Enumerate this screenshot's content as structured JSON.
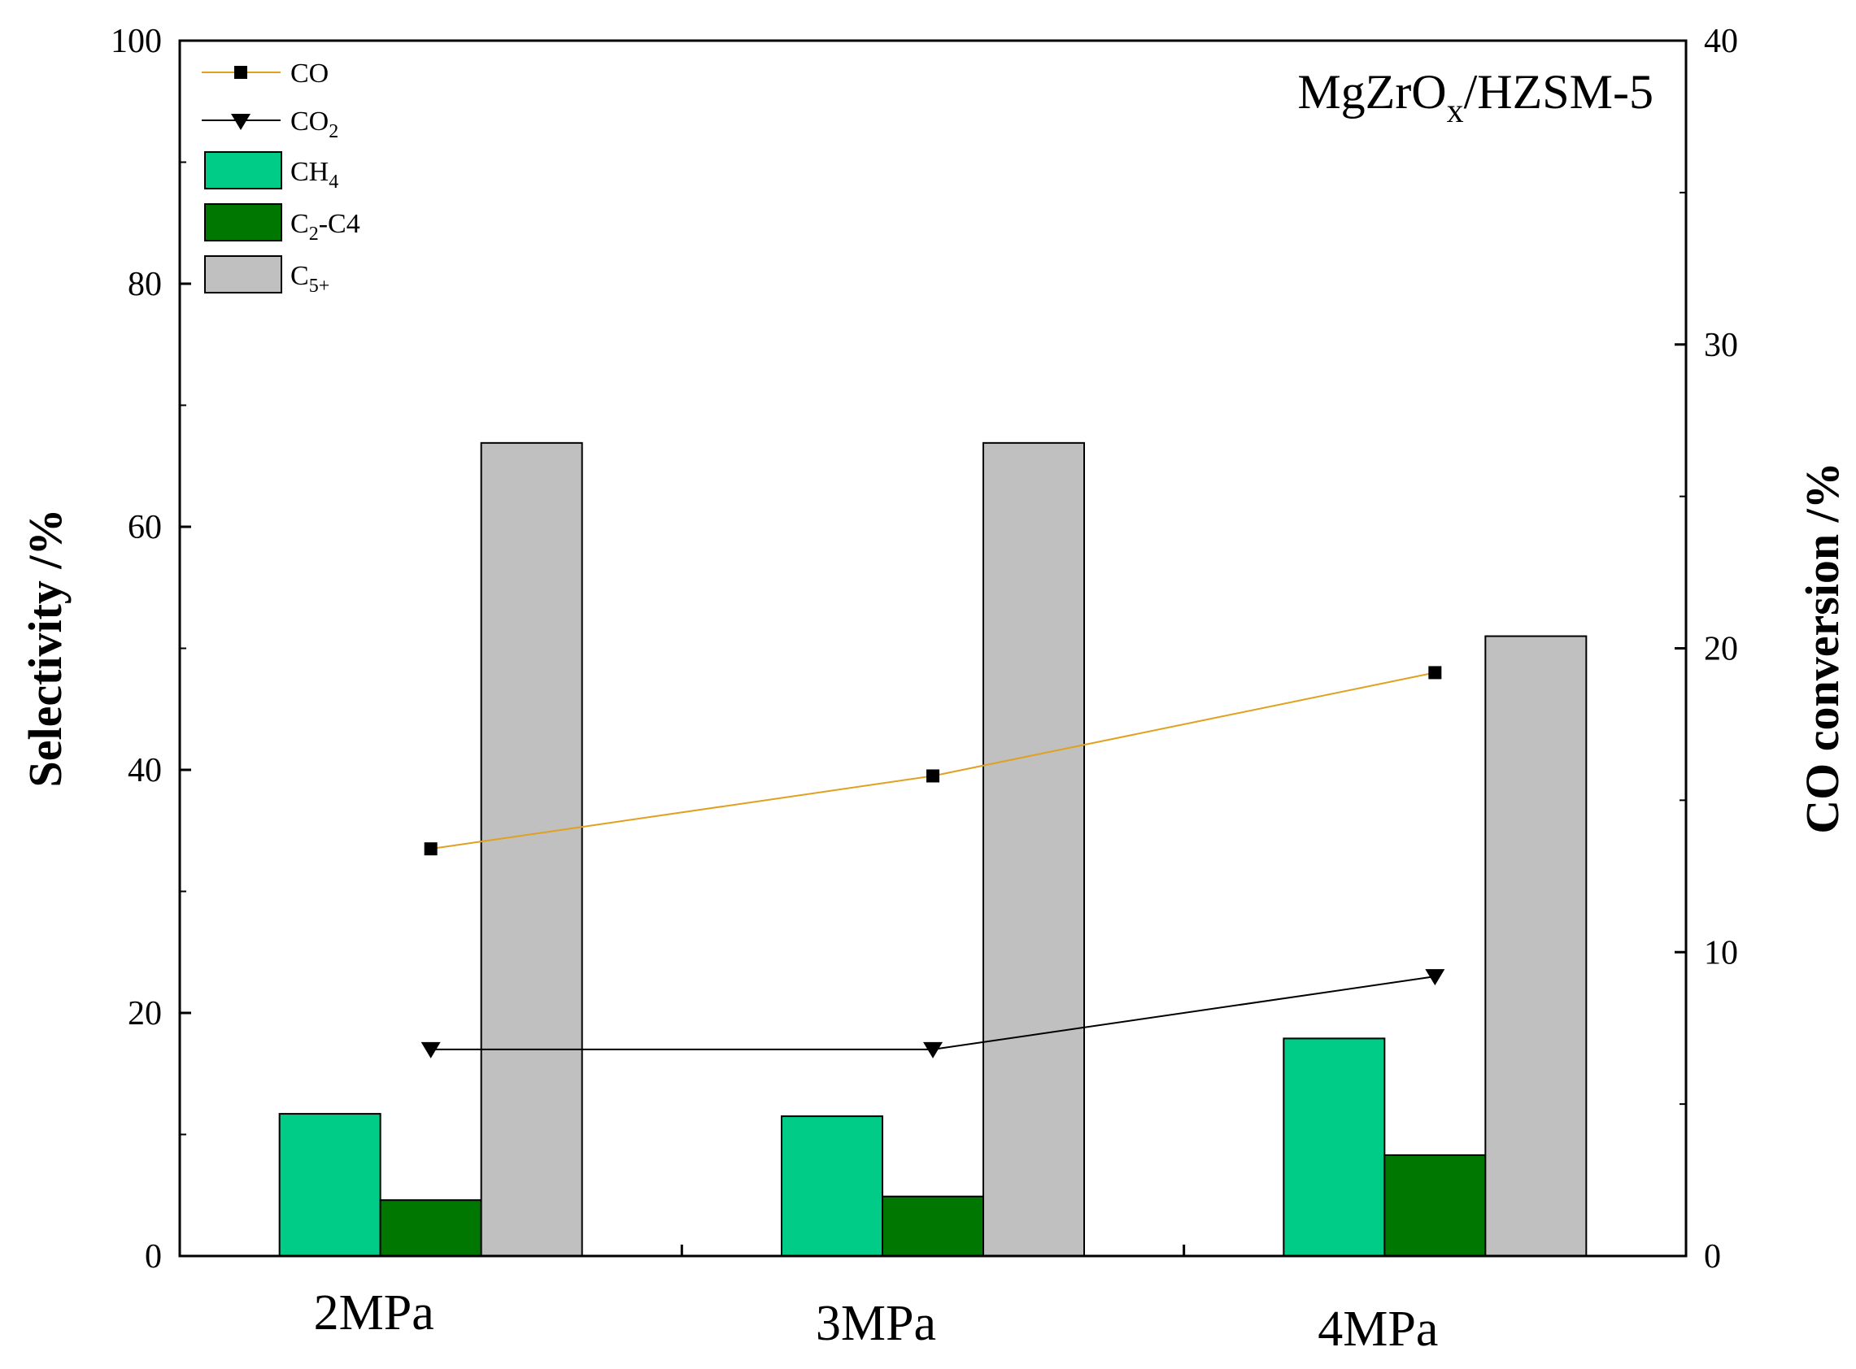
{
  "chart_data": {
    "type": "bar",
    "annotation": {
      "main": "MgZrO",
      "sub": "x",
      "rest": "/HZSM-5"
    },
    "categories": [
      "2MPa",
      "3MPa",
      "4MPa"
    ],
    "ylabel": "Selectivity /%",
    "y2label": "CO conversion /%",
    "ylim": [
      0,
      100
    ],
    "y2lim": [
      0,
      40
    ],
    "yticks": [
      "0",
      "20",
      "40",
      "60",
      "80",
      "100"
    ],
    "y2ticks": [
      "0",
      "10",
      "20",
      "30",
      "40"
    ],
    "bar_series": [
      {
        "name": "CH4",
        "legend_main": "CH",
        "legend_sub": "4",
        "legend_rest": "",
        "color": "#00cc88",
        "values": [
          11.7,
          11.5,
          17.9
        ]
      },
      {
        "name": "C2-C4",
        "legend_main": "C",
        "legend_sub": "2",
        "legend_rest": "-C4",
        "color": "#007700",
        "values": [
          4.6,
          4.9,
          8.3
        ]
      },
      {
        "name": "C5+",
        "legend_main": "C",
        "legend_sub": "5+",
        "legend_rest": "",
        "color": "#c0c0c0",
        "values": [
          66.9,
          66.9,
          51.0
        ]
      }
    ],
    "line_series": [
      {
        "name": "CO",
        "legend_main": "CO",
        "legend_sub": "",
        "color": "#e0a020",
        "marker": "square",
        "axis": "right",
        "values": [
          13.4,
          15.8,
          19.2
        ]
      },
      {
        "name": "CO2",
        "legend_main": "CO",
        "legend_sub": "2",
        "color": "#000000",
        "marker": "triangle-down",
        "axis": "right",
        "values": [
          6.8,
          6.8,
          9.2
        ]
      }
    ]
  }
}
